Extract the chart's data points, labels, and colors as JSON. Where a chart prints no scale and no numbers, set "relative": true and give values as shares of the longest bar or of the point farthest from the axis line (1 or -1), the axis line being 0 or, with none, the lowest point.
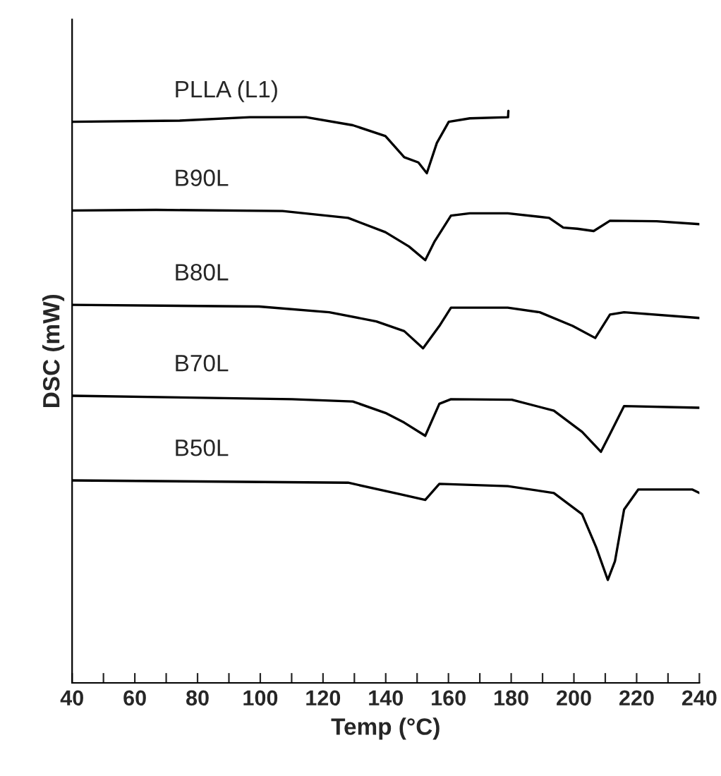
{
  "chart_data": {
    "type": "line",
    "relative": true,
    "xlabel": "Temp (°C)",
    "ylabel": "DSC (mW)",
    "xlim": [
      40,
      240
    ],
    "xticks": [
      40,
      {
        "value": 50,
        "label": null
      },
      60,
      {
        "value": 70,
        "label": null
      },
      80,
      {
        "value": 90,
        "label": null
      },
      100,
      {
        "value": 110,
        "label": null
      },
      120,
      {
        "value": 130,
        "label": null
      },
      140,
      {
        "value": 150,
        "label": null
      },
      160,
      {
        "value": 170,
        "label": null
      },
      180,
      {
        "value": 190,
        "label": null
      },
      200,
      {
        "value": 210,
        "label": null
      },
      220,
      {
        "value": 230,
        "label": null
      },
      240
    ],
    "tick_labels": "x",
    "grid": false,
    "legend": false,
    "marker": "none",
    "line_style": "solid",
    "series": [
      {
        "name": "PLLA (L1)",
        "color": "#000000",
        "x": [
          40,
          74.3,
          96.7,
          114.6,
          129.5,
          139.9,
          145.9,
          150.4,
          153.1,
          156.3,
          160.1,
          166.8,
          179.0,
          179.1
        ],
        "values": [
          0.981,
          0.983,
          0.989,
          0.989,
          0.975,
          0.956,
          0.919,
          0.91,
          0.891,
          0.944,
          0.981,
          0.987,
          0.989,
          1.0
        ]
      },
      {
        "name": "B90L",
        "color": "#000000",
        "x": [
          40,
          66.8,
          107.1,
          128.0,
          139.9,
          147.4,
          152.6,
          155.6,
          160.8,
          166.8,
          178.9,
          192.1,
          196.6,
          201.1,
          206.3,
          211.5,
          226.4,
          240
        ],
        "values": [
          0.826,
          0.827,
          0.825,
          0.813,
          0.788,
          0.763,
          0.739,
          0.772,
          0.817,
          0.821,
          0.821,
          0.813,
          0.796,
          0.794,
          0.79,
          0.808,
          0.807,
          0.802
        ]
      },
      {
        "name": "B80L",
        "color": "#000000",
        "x": [
          40,
          99.6,
          122.0,
          137.0,
          145.9,
          151.9,
          157.1,
          160.8,
          178.9,
          189.1,
          199.6,
          206.8,
          211.5,
          216.0,
          240
        ],
        "values": [
          0.661,
          0.658,
          0.648,
          0.632,
          0.615,
          0.585,
          0.624,
          0.656,
          0.656,
          0.648,
          0.624,
          0.603,
          0.644,
          0.648,
          0.638
        ]
      },
      {
        "name": "B70L",
        "color": "#000000",
        "x": [
          40,
          110.1,
          129.5,
          139.9,
          145.9,
          152.6,
          157.1,
          160.8,
          180.2,
          193.6,
          202.6,
          208.6,
          211.5,
          216.0,
          240
        ],
        "values": [
          0.502,
          0.496,
          0.492,
          0.472,
          0.455,
          0.432,
          0.488,
          0.496,
          0.495,
          0.476,
          0.439,
          0.404,
          0.435,
          0.484,
          0.481
        ]
      },
      {
        "name": "B50L",
        "color": "#000000",
        "x": [
          40,
          128.0,
          144.4,
          152.6,
          157.1,
          178.9,
          193.6,
          202.6,
          207.1,
          210.8,
          213.1,
          216.0,
          220.5,
          237.8,
          240
        ],
        "values": [
          0.354,
          0.35,
          0.33,
          0.32,
          0.348,
          0.344,
          0.332,
          0.295,
          0.237,
          0.18,
          0.213,
          0.303,
          0.338,
          0.338,
          0.332
        ]
      }
    ]
  }
}
